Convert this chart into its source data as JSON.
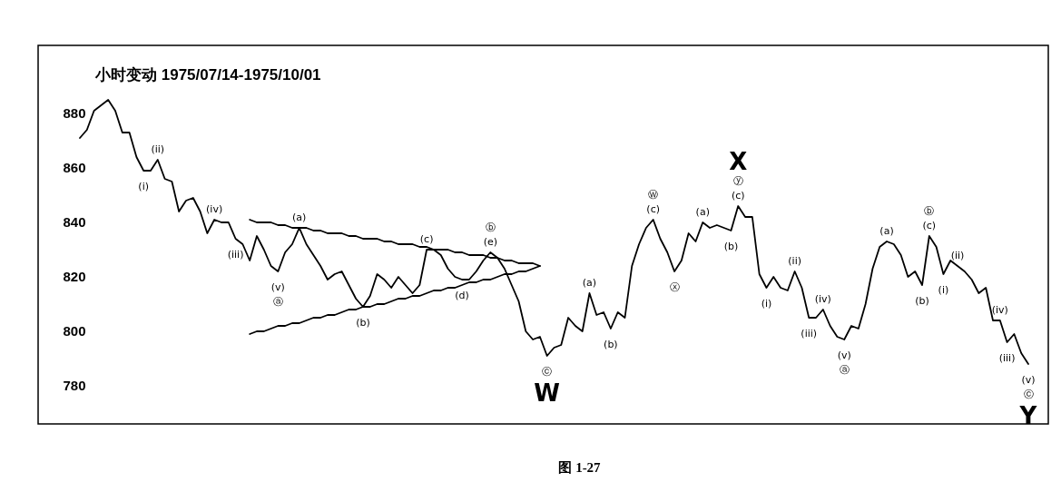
{
  "chart_data": {
    "type": "line",
    "title": "小时变动   1975/07/14-1975/10/01",
    "ylim": [
      766,
      905
    ],
    "yticks": [
      780,
      800,
      820,
      840,
      860,
      880
    ],
    "tick_labels": "y",
    "categories": [
      null,
      null,
      null,
      null,
      null,
      null,
      null,
      null,
      null,
      null,
      null,
      null,
      null,
      null,
      null,
      null,
      null,
      null,
      null,
      null,
      null,
      null,
      null,
      null,
      null,
      null,
      null,
      null,
      null,
      null,
      null,
      null,
      null,
      null,
      null,
      null,
      null,
      null,
      null,
      null,
      null,
      null,
      null,
      null,
      null,
      null,
      null,
      null,
      null,
      null,
      null,
      null,
      null,
      null,
      null,
      null,
      null,
      null,
      null,
      null,
      null,
      null,
      null,
      null,
      null,
      null,
      null,
      null,
      null,
      null,
      null,
      null,
      null,
      null,
      null,
      null,
      null,
      null,
      null,
      null,
      null,
      null,
      null,
      null,
      null,
      null,
      null,
      null,
      null,
      null,
      null,
      null,
      null,
      null,
      null,
      null,
      null,
      null,
      null,
      null,
      null,
      null,
      null,
      null,
      null,
      null,
      null,
      null,
      null,
      null,
      null,
      null,
      null,
      null,
      null,
      null,
      null,
      null,
      null,
      null,
      null,
      null,
      null,
      null,
      null,
      null,
      null,
      null,
      null,
      null,
      null,
      null,
      null,
      null,
      null
    ],
    "series": [
      {
        "color": "#000000",
        "values": [
          871,
          874,
          881,
          883,
          885,
          881,
          873,
          873,
          864,
          859,
          859,
          863,
          856,
          855,
          844,
          848,
          849,
          844,
          836,
          841,
          840,
          840,
          834,
          832,
          826,
          835,
          830,
          824,
          822,
          829,
          832,
          838,
          832,
          828,
          824,
          819,
          821,
          822,
          817,
          812,
          809,
          813,
          821,
          819,
          816,
          820,
          817,
          814,
          817,
          830,
          830,
          828,
          823,
          820,
          819,
          819,
          822,
          826,
          829,
          827,
          823,
          817,
          811,
          800,
          797,
          798,
          791,
          794,
          795,
          805,
          802,
          800,
          814,
          806,
          807,
          801,
          807,
          805,
          824,
          832,
          838,
          841,
          834,
          829,
          822,
          826,
          836,
          833,
          840,
          838,
          839,
          838,
          837,
          846,
          842,
          842,
          821,
          816,
          820,
          816,
          815,
          822,
          816,
          805,
          805,
          808,
          802,
          798,
          797,
          802,
          801,
          810,
          823,
          831,
          833,
          832,
          828,
          820,
          822,
          817,
          835,
          831,
          821,
          826,
          824,
          822,
          819,
          814,
          816,
          804,
          804,
          796,
          799,
          792,
          788
        ],
        "value_labels": [
          null,
          null,
          null,
          null,
          null,
          null,
          null,
          null,
          null,
          "(i)",
          null,
          "(ii)",
          null,
          null,
          null,
          null,
          null,
          null,
          null,
          "(iv)",
          null,
          null,
          "(iii)",
          null,
          null,
          null,
          null,
          null,
          "(v)\nⓐ",
          null,
          null,
          "(a)",
          null,
          null,
          null,
          null,
          null,
          null,
          null,
          null,
          "(b)",
          null,
          null,
          null,
          null,
          null,
          null,
          null,
          null,
          "(c)",
          null,
          null,
          null,
          null,
          "(d)",
          null,
          null,
          null,
          "ⓑ\n(e)",
          null,
          null,
          null,
          null,
          null,
          null,
          null,
          "ⓒ\nW",
          null,
          null,
          null,
          null,
          null,
          "(a)",
          null,
          null,
          "(b)",
          null,
          null,
          null,
          null,
          null,
          "Ⓦ\n(c)",
          null,
          null,
          "ⓧ",
          null,
          null,
          null,
          "(a)",
          null,
          null,
          null,
          "(b)",
          "X\nⓨ\n(c)",
          null,
          null,
          null,
          "(i)",
          null,
          null,
          null,
          "(ii)",
          null,
          "(iii)",
          null,
          "(iv)",
          null,
          null,
          "(v)\nⓐ",
          null,
          null,
          null,
          null,
          null,
          "(a)",
          null,
          null,
          null,
          null,
          "(b)",
          "ⓑ\n(c)",
          null,
          "(i)",
          null,
          "(ii)",
          null,
          null,
          null,
          null,
          null,
          "(iv)",
          "(iii)",
          null,
          null,
          "(v)\nⓒ\nY"
        ]
      },
      {
        "type": "line",
        "color": "#000000",
        "values": [
          null,
          null,
          null,
          null,
          null,
          null,
          null,
          null,
          null,
          null,
          null,
          null,
          null,
          null,
          null,
          null,
          null,
          null,
          null,
          null,
          null,
          null,
          null,
          null,
          841,
          840,
          840,
          840,
          839,
          839,
          838,
          838,
          838,
          837,
          837,
          836,
          836,
          836,
          835,
          835,
          834,
          834,
          834,
          833,
          833,
          832,
          832,
          832,
          831,
          831,
          830,
          830,
          830,
          829,
          829,
          828,
          828,
          828,
          827,
          827,
          826,
          826,
          825,
          825,
          825,
          824,
          null,
          null,
          null,
          null,
          null,
          null,
          null,
          null,
          null,
          null,
          null,
          null,
          null,
          null,
          null,
          null,
          null,
          null,
          null,
          null,
          null,
          null,
          null,
          null,
          null,
          null,
          null,
          null,
          null,
          null,
          null,
          null,
          null,
          null,
          null,
          null,
          null,
          null,
          null,
          null,
          null,
          null,
          null,
          null,
          null,
          null,
          null,
          null,
          null,
          null,
          null,
          null,
          null,
          null,
          null,
          null,
          null,
          null,
          null,
          null,
          null,
          null,
          null,
          null,
          null,
          null,
          null,
          null,
          null
        ]
      },
      {
        "type": "line",
        "color": "#000000",
        "values": [
          null,
          null,
          null,
          null,
          null,
          null,
          null,
          null,
          null,
          null,
          null,
          null,
          null,
          null,
          null,
          null,
          null,
          null,
          null,
          null,
          null,
          null,
          null,
          null,
          799,
          800,
          800,
          801,
          802,
          802,
          803,
          803,
          804,
          805,
          805,
          806,
          806,
          807,
          808,
          808,
          809,
          809,
          810,
          810,
          811,
          812,
          812,
          813,
          813,
          814,
          815,
          815,
          816,
          816,
          817,
          818,
          818,
          819,
          819,
          820,
          821,
          821,
          822,
          822,
          823,
          824,
          null,
          null,
          null,
          null,
          null,
          null,
          null,
          null,
          null,
          null,
          null,
          null,
          null,
          null,
          null,
          null,
          null,
          null,
          null,
          null,
          null,
          null,
          null,
          null,
          null,
          null,
          null,
          null,
          null,
          null,
          null,
          null,
          null,
          null,
          null,
          null,
          null,
          null,
          null,
          null,
          null,
          null,
          null,
          null,
          null,
          null,
          null,
          null,
          null,
          null,
          null,
          null,
          null,
          null,
          null,
          null,
          null,
          null,
          null,
          null,
          null,
          null,
          null,
          null,
          null,
          null,
          null,
          null,
          null
        ]
      }
    ],
    "annotations": [
      "图 1-27"
    ]
  }
}
